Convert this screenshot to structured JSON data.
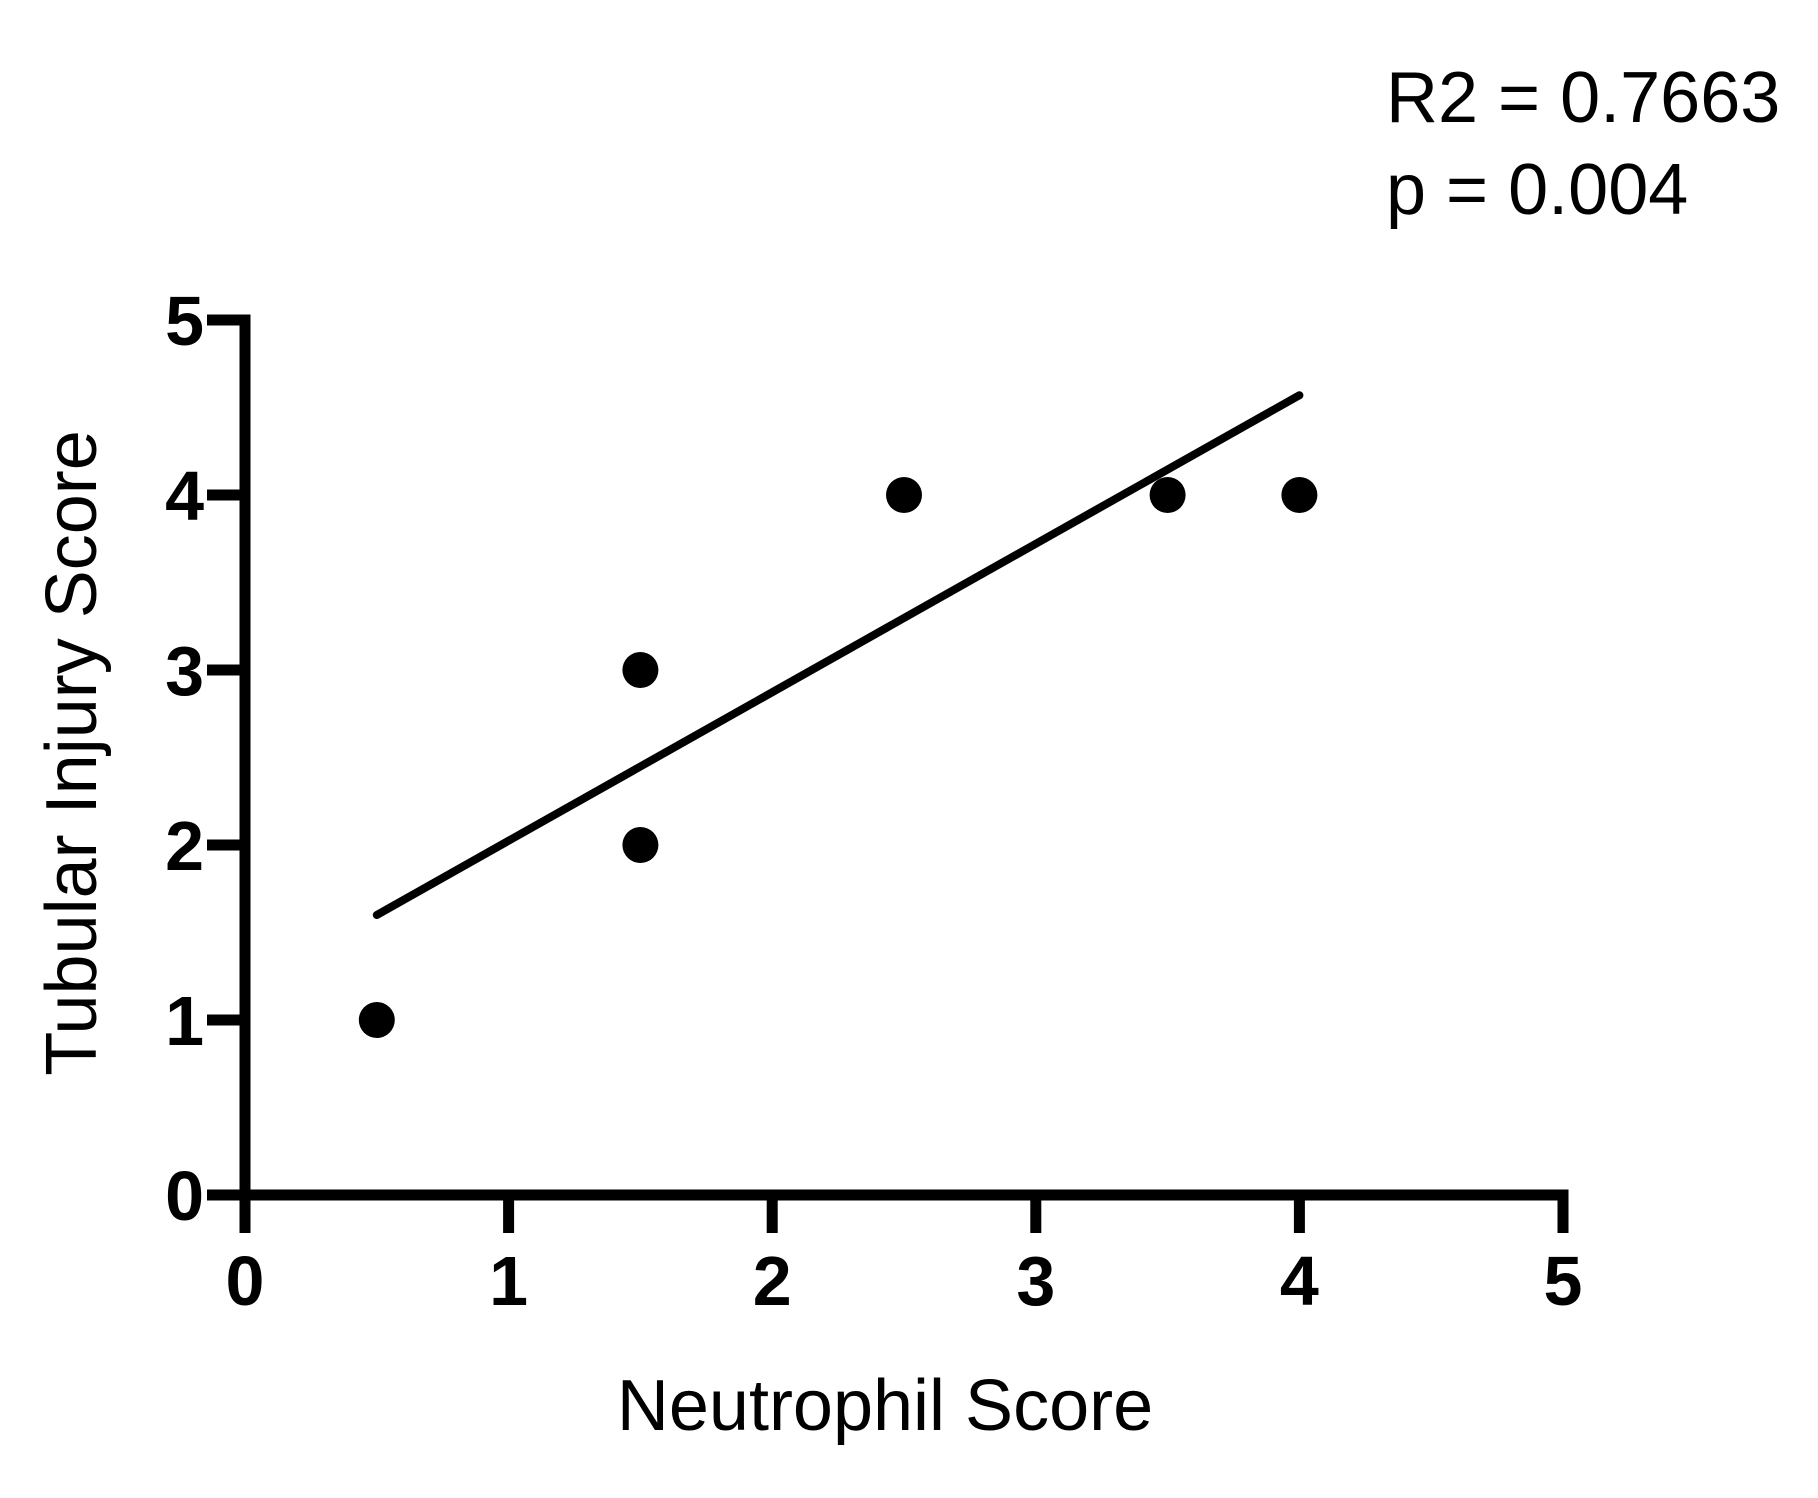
{
  "figure": {
    "background_color": "#ffffff",
    "ink_color": "#000000"
  },
  "annotation": {
    "line1": "R2 = 0.7663",
    "line2": "p = 0.004"
  },
  "chart_data": {
    "type": "scatter",
    "title": "",
    "xlabel": "Neutrophil Score",
    "ylabel": "Tubular Injury Score",
    "xlim": [
      0,
      5
    ],
    "ylim": [
      0,
      5
    ],
    "x_ticks": [
      0,
      1,
      2,
      3,
      4,
      5
    ],
    "y_ticks": [
      0,
      1,
      2,
      3,
      4,
      5
    ],
    "grid": false,
    "legend": false,
    "marker_color": "#000000",
    "line_color": "#000000",
    "points": [
      {
        "x": 0.5,
        "y": 1
      },
      {
        "x": 1.5,
        "y": 2
      },
      {
        "x": 1.5,
        "y": 3
      },
      {
        "x": 2.5,
        "y": 4
      },
      {
        "x": 3.5,
        "y": 4
      },
      {
        "x": 4.0,
        "y": 4
      }
    ],
    "regression": {
      "r2": 0.7663,
      "p": 0.004,
      "trend_line": {
        "x1": 0.5,
        "y1": 1.6,
        "x2": 4.0,
        "y2": 4.57
      }
    }
  }
}
